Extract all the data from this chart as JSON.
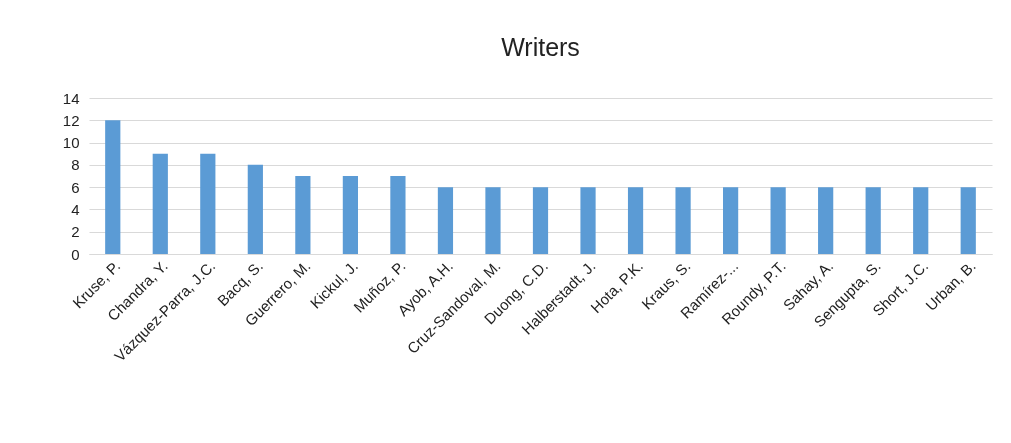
{
  "chart_data": {
    "type": "bar",
    "title": "Writers",
    "categories": [
      "Kruse, P.",
      "Chandra, Y.",
      "Vázquez-Parra, J.C.",
      "Bacq, S.",
      "Guerrero, M.",
      "Kickul, J.",
      "Muñoz, P.",
      "Ayob, A.H.",
      "Cruz-Sandoval, M.",
      "Duong, C.D.",
      "Halberstadt, J.",
      "Hota, P.K.",
      "Kraus, S.",
      "Ramírez-...",
      "Roundy, P.T.",
      "Sahay, A.",
      "Sengupta, S.",
      "Short, J.C.",
      "Urban, B."
    ],
    "values": [
      12,
      9,
      9,
      8,
      7,
      7,
      7,
      6,
      6,
      6,
      6,
      6,
      6,
      6,
      6,
      6,
      6,
      6,
      6
    ],
    "color": "#5b9bd5",
    "ylim": [
      0,
      14
    ],
    "yticks": [
      0,
      2,
      4,
      6,
      8,
      10,
      12,
      14
    ],
    "grid": "y"
  }
}
